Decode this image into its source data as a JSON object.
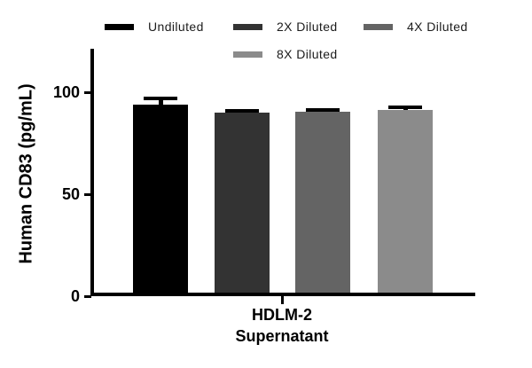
{
  "chart_data": {
    "type": "bar",
    "title": "",
    "categories": [
      "HDLM-2 Supernatant"
    ],
    "series": [
      {
        "name": "Undiluted",
        "value": 94.0,
        "error": 3.0,
        "color": "#000000"
      },
      {
        "name": "2X Diluted",
        "value": 90.0,
        "error": 1.0,
        "color": "#333333"
      },
      {
        "name": "4X Diluted",
        "value": 90.5,
        "error": 1.0,
        "color": "#646464"
      },
      {
        "name": "8X Diluted",
        "value": 91.5,
        "error": 1.0,
        "color": "#8b8b8b"
      }
    ],
    "ylabel": "Human CD83 (pg/mL)",
    "xlabel": "HDLM-2\nSupernatant",
    "ylim": [
      0,
      121
    ],
    "yticks": [
      0,
      50,
      100
    ],
    "grid": false,
    "legend_position": "top",
    "error_bar_color": "#000000",
    "background_color": "#ffffff"
  }
}
